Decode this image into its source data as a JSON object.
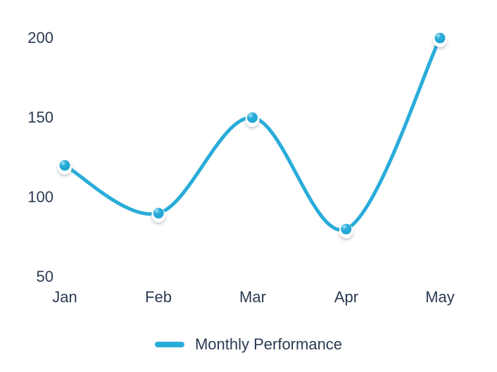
{
  "chart_data": {
    "type": "line",
    "categories": [
      "Jan",
      "Feb",
      "Mar",
      "Apr",
      "May"
    ],
    "series": [
      {
        "name": "Monthly Performance",
        "values": [
          120,
          90,
          150,
          80,
          200
        ]
      }
    ],
    "title": "",
    "xlabel": "",
    "ylabel": "",
    "ylim": [
      50,
      200
    ],
    "y_ticks": [
      200,
      150,
      100,
      50
    ],
    "grid": false,
    "axis_lines": false,
    "smooth": true,
    "markers": "sphere",
    "legend_position": "bottom",
    "colors": {
      "line": "#29ACD9",
      "marker_base": "#1EA2D2",
      "marker_highlight": "#A9E5F5",
      "marker_ring": "#FFFFFF",
      "text": "#2B3A53",
      "background": "#FFFFFF"
    }
  },
  "legend": {
    "label": "Monthly Performance"
  }
}
